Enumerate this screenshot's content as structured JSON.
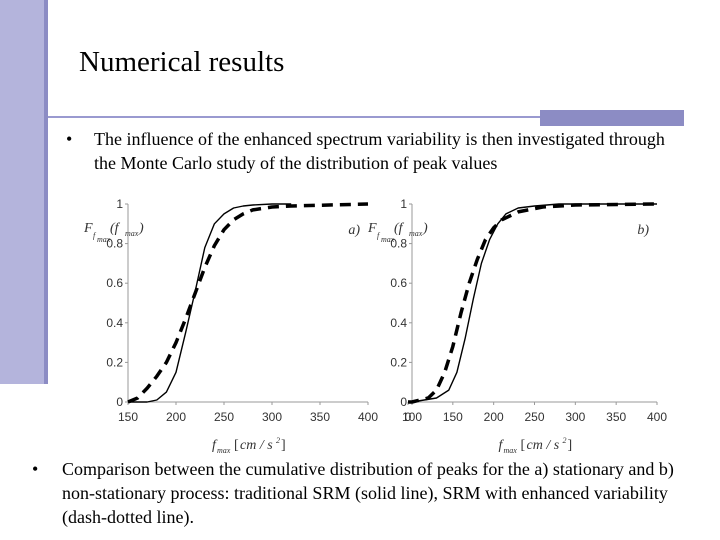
{
  "slide": {
    "title": "Numerical results",
    "bullet_char": "•",
    "bullet1": "The influence of the enhanced spectrum variability is then investigated through the Monte Carlo study of the distribution of peak values",
    "bullet2": "Comparison between the cumulative distribution of peaks for the a) stationary and  b) non-stationary process: traditional SRM (solid line), SRM with enhanced variability (dash-dotted line)."
  },
  "colors": {
    "accent": "#b4b4dc",
    "accent_dark": "#8c8cc4"
  },
  "chart_data": [
    {
      "type": "line",
      "panel_label": "a)",
      "ylabel": "F_fmax (f_max)",
      "xlabel": "f_max [cm / s²]",
      "xlim": [
        150,
        400
      ],
      "ylim": [
        0,
        1
      ],
      "xticks": [
        150,
        200,
        250,
        300,
        350,
        400
      ],
      "yticks": [
        0,
        0.2,
        0.4,
        0.6,
        0.8,
        1
      ],
      "series": [
        {
          "style": "solid",
          "x": [
            150,
            170,
            180,
            190,
            200,
            210,
            220,
            230,
            240,
            250,
            260,
            270,
            280,
            300,
            320
          ],
          "y": [
            0,
            0,
            0.01,
            0.05,
            0.15,
            0.35,
            0.56,
            0.78,
            0.9,
            0.95,
            0.98,
            0.99,
            0.995,
            1,
            1
          ]
        },
        {
          "style": "dashed",
          "x": [
            150,
            160,
            170,
            180,
            190,
            200,
            210,
            220,
            230,
            240,
            250,
            260,
            270,
            280,
            300,
            320,
            400
          ],
          "y": [
            0,
            0.02,
            0.07,
            0.13,
            0.2,
            0.3,
            0.42,
            0.55,
            0.68,
            0.79,
            0.87,
            0.92,
            0.95,
            0.97,
            0.985,
            0.99,
            1
          ]
        }
      ]
    },
    {
      "type": "line",
      "panel_label": "b)",
      "ylabel": "F_fmax (f_max)",
      "xlabel": "f_max [cm / s²]",
      "xlim": [
        0,
        400
      ],
      "ylim": [
        0,
        1
      ],
      "xticks": [
        0,
        100,
        150,
        200,
        250,
        300,
        350,
        400
      ],
      "yticks": [
        0,
        0.2,
        0.4,
        0.6,
        0.8,
        1
      ],
      "series": [
        {
          "style": "solid",
          "x": [
            0,
            100,
            130,
            145,
            155,
            165,
            175,
            185,
            195,
            205,
            215,
            230,
            250,
            280,
            400
          ],
          "y": [
            0,
            0,
            0.02,
            0.06,
            0.15,
            0.32,
            0.52,
            0.7,
            0.82,
            0.9,
            0.95,
            0.98,
            0.99,
            1,
            1
          ]
        },
        {
          "style": "dashed",
          "x": [
            0,
            100,
            120,
            130,
            140,
            150,
            160,
            170,
            180,
            190,
            200,
            210,
            230,
            260,
            300,
            400
          ],
          "y": [
            0,
            0,
            0.02,
            0.06,
            0.15,
            0.28,
            0.45,
            0.6,
            0.72,
            0.82,
            0.88,
            0.92,
            0.96,
            0.985,
            0.995,
            1
          ]
        }
      ]
    }
  ]
}
